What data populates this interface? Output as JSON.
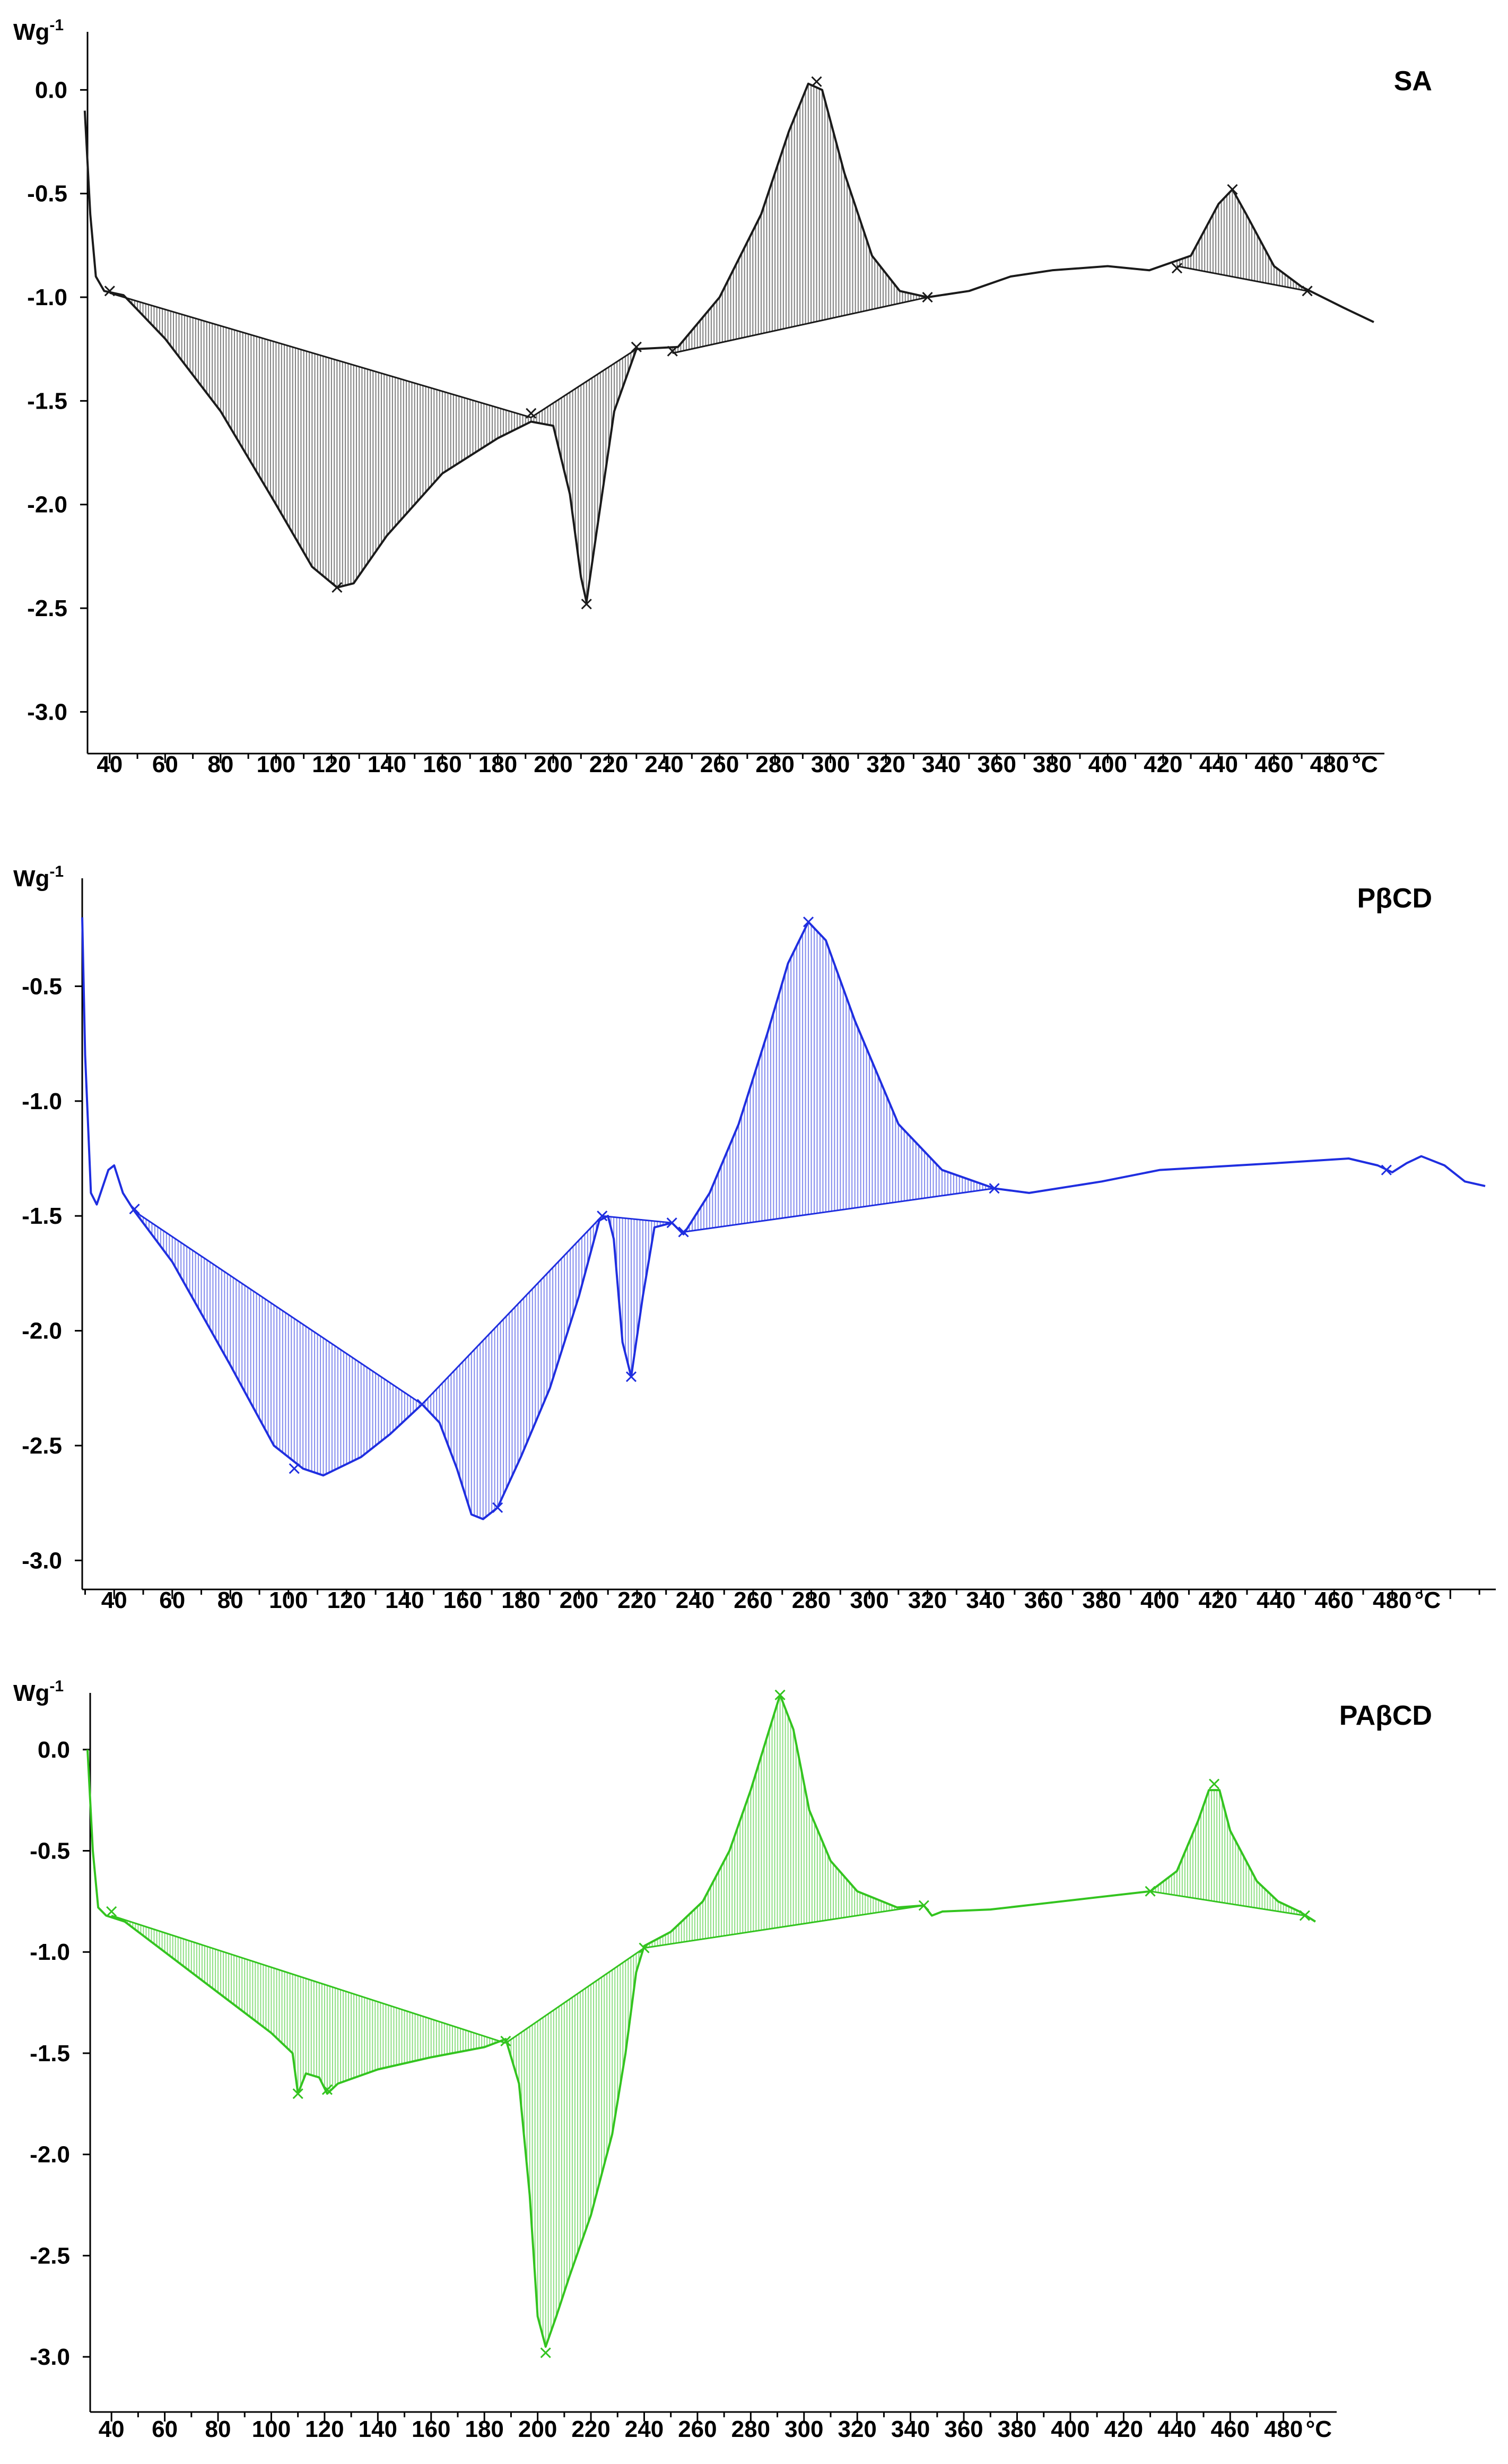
{
  "chart_data": [
    {
      "type": "line",
      "title": "SA",
      "ylabel": "Wg",
      "ylabel_sup": "-1",
      "xunit": "°C",
      "color": "#1a1a1a",
      "xlim": [
        32,
        496
      ],
      "ylim": [
        -3.15,
        0.28
      ],
      "xticks": [
        "40",
        "60",
        "80",
        "100",
        "120",
        "140",
        "160",
        "180",
        "200",
        "220",
        "240",
        "260",
        "280",
        "300",
        "320",
        "340",
        "360",
        "380",
        "400",
        "420",
        "440",
        "460",
        "480"
      ],
      "yticks": [
        "0.0",
        "-0.5",
        "-1.0",
        "-1.5",
        "-2.0",
        "-2.5",
        "-3.0"
      ],
      "curve": [
        [
          31,
          -0.1
        ],
        [
          33,
          -0.6
        ],
        [
          35,
          -0.9
        ],
        [
          38,
          -0.97
        ],
        [
          45,
          -0.99
        ],
        [
          60,
          -1.2
        ],
        [
          80,
          -1.55
        ],
        [
          100,
          -2.0
        ],
        [
          113,
          -2.3
        ],
        [
          122,
          -2.4
        ],
        [
          128,
          -2.38
        ],
        [
          140,
          -2.15
        ],
        [
          160,
          -1.85
        ],
        [
          180,
          -1.68
        ],
        [
          192,
          -1.6
        ],
        [
          200,
          -1.62
        ],
        [
          206,
          -1.95
        ],
        [
          210,
          -2.35
        ],
        [
          212,
          -2.47
        ],
        [
          216,
          -2.1
        ],
        [
          222,
          -1.55
        ],
        [
          230,
          -1.25
        ],
        [
          245,
          -1.24
        ],
        [
          260,
          -1.0
        ],
        [
          275,
          -0.6
        ],
        [
          285,
          -0.2
        ],
        [
          292,
          0.03
        ],
        [
          297,
          0.0
        ],
        [
          305,
          -0.4
        ],
        [
          315,
          -0.8
        ],
        [
          325,
          -0.97
        ],
        [
          335,
          -1.0
        ],
        [
          350,
          -0.97
        ],
        [
          365,
          -0.9
        ],
        [
          380,
          -0.87
        ],
        [
          400,
          -0.85
        ],
        [
          415,
          -0.87
        ],
        [
          430,
          -0.8
        ],
        [
          440,
          -0.55
        ],
        [
          445,
          -0.48
        ],
        [
          450,
          -0.6
        ],
        [
          460,
          -0.85
        ],
        [
          470,
          -0.95
        ],
        [
          485,
          -1.05
        ],
        [
          496,
          -1.12
        ]
      ],
      "shaded": [
        {
          "x1": 40,
          "x2": 192,
          "y1": -0.98,
          "y2": -1.58
        },
        {
          "x1": 192,
          "x2": 230,
          "y1": -1.58,
          "y2": -1.25
        },
        {
          "x1": 243,
          "x2": 335,
          "y1": -1.27,
          "y2": -1.0
        },
        {
          "x1": 425,
          "x2": 472,
          "y1": -0.85,
          "y2": -0.97
        }
      ],
      "markers": [
        [
          40,
          -0.97
        ],
        [
          122,
          -2.4
        ],
        [
          192,
          -1.56
        ],
        [
          212,
          -2.48
        ],
        [
          230,
          -1.24
        ],
        [
          243,
          -1.26
        ],
        [
          295,
          0.04
        ],
        [
          335,
          -1.0
        ],
        [
          425,
          -0.86
        ],
        [
          445,
          -0.48
        ],
        [
          472,
          -0.97
        ]
      ]
    },
    {
      "type": "line",
      "title": "PβCD",
      "ylabel": "Wg",
      "ylabel_sup": "-1",
      "xunit": "°C",
      "color": "#1f2ee0",
      "xlim": [
        29,
        512
      ],
      "ylim": [
        -3.08,
        -0.03
      ],
      "xticks": [
        "40",
        "60",
        "80",
        "100",
        "120",
        "140",
        "160",
        "180",
        "200",
        "220",
        "240",
        "260",
        "280",
        "300",
        "320",
        "340",
        "360",
        "380",
        "400",
        "420",
        "440",
        "460",
        "480"
      ],
      "yticks": [
        "-0.5",
        "-1.0",
        "-1.5",
        "-2.0",
        "-2.5",
        "-3.0"
      ],
      "curve": [
        [
          29,
          -0.2
        ],
        [
          30,
          -0.8
        ],
        [
          32,
          -1.4
        ],
        [
          34,
          -1.45
        ],
        [
          38,
          -1.3
        ],
        [
          40,
          -1.28
        ],
        [
          43,
          -1.4
        ],
        [
          47,
          -1.48
        ],
        [
          60,
          -1.7
        ],
        [
          80,
          -2.15
        ],
        [
          95,
          -2.5
        ],
        [
          105,
          -2.6
        ],
        [
          112,
          -2.63
        ],
        [
          125,
          -2.55
        ],
        [
          135,
          -2.45
        ],
        [
          146,
          -2.32
        ],
        [
          152,
          -2.4
        ],
        [
          158,
          -2.6
        ],
        [
          163,
          -2.8
        ],
        [
          167,
          -2.82
        ],
        [
          172,
          -2.77
        ],
        [
          180,
          -2.55
        ],
        [
          190,
          -2.25
        ],
        [
          200,
          -1.85
        ],
        [
          207,
          -1.52
        ],
        [
          210,
          -1.5
        ],
        [
          212,
          -1.6
        ],
        [
          215,
          -2.05
        ],
        [
          218,
          -2.2
        ],
        [
          222,
          -1.85
        ],
        [
          226,
          -1.55
        ],
        [
          232,
          -1.53
        ],
        [
          236,
          -1.58
        ],
        [
          245,
          -1.4
        ],
        [
          255,
          -1.1
        ],
        [
          265,
          -0.7
        ],
        [
          272,
          -0.4
        ],
        [
          279,
          -0.22
        ],
        [
          285,
          -0.3
        ],
        [
          295,
          -0.65
        ],
        [
          310,
          -1.1
        ],
        [
          325,
          -1.3
        ],
        [
          343,
          -1.38
        ],
        [
          355,
          -1.4
        ],
        [
          380,
          -1.35
        ],
        [
          400,
          -1.3
        ],
        [
          440,
          -1.27
        ],
        [
          465,
          -1.25
        ],
        [
          475,
          -1.28
        ],
        [
          480,
          -1.31
        ],
        [
          485,
          -1.27
        ],
        [
          490,
          -1.24
        ],
        [
          498,
          -1.28
        ],
        [
          505,
          -1.35
        ],
        [
          512,
          -1.37
        ]
      ],
      "shaded": [
        {
          "x1": 47,
          "x2": 146,
          "y1": -1.48,
          "y2": -2.32
        },
        {
          "x1": 146,
          "x2": 208,
          "y1": -2.32,
          "y2": -1.5
        },
        {
          "x1": 208,
          "x2": 232,
          "y1": -1.5,
          "y2": -1.53
        },
        {
          "x1": 236,
          "x2": 343,
          "y1": -1.57,
          "y2": -1.38
        }
      ],
      "markers": [
        [
          47,
          -1.47
        ],
        [
          102,
          -2.6
        ],
        [
          146,
          -2.32
        ],
        [
          172,
          -2.77
        ],
        [
          208,
          -1.5
        ],
        [
          218,
          -2.2
        ],
        [
          232,
          -1.53
        ],
        [
          236,
          -1.57
        ],
        [
          279,
          -0.22
        ],
        [
          343,
          -1.38
        ],
        [
          478,
          -1.3
        ]
      ]
    },
    {
      "type": "line",
      "title": "PAβCD",
      "ylabel": "Wg",
      "ylabel_sup": "-1",
      "xunit": "°C",
      "color": "#33c41f",
      "xlim": [
        32,
        496
      ],
      "ylim": [
        -3.22,
        0.28
      ],
      "xticks": [
        "40",
        "60",
        "80",
        "100",
        "120",
        "140",
        "160",
        "180",
        "200",
        "220",
        "240",
        "260",
        "280",
        "300",
        "320",
        "340",
        "360",
        "380",
        "400",
        "420",
        "440",
        "460",
        "480"
      ],
      "yticks": [
        "0.0",
        "-0.5",
        "-1.0",
        "-1.5",
        "-2.0",
        "-2.5",
        "-3.0"
      ],
      "curve": [
        [
          31,
          0.0
        ],
        [
          33,
          -0.5
        ],
        [
          35,
          -0.78
        ],
        [
          38,
          -0.82
        ],
        [
          45,
          -0.85
        ],
        [
          60,
          -1.0
        ],
        [
          80,
          -1.2
        ],
        [
          100,
          -1.4
        ],
        [
          108,
          -1.5
        ],
        [
          110,
          -1.7
        ],
        [
          113,
          -1.6
        ],
        [
          118,
          -1.62
        ],
        [
          121,
          -1.7
        ],
        [
          125,
          -1.65
        ],
        [
          140,
          -1.58
        ],
        [
          160,
          -1.52
        ],
        [
          180,
          -1.47
        ],
        [
          188,
          -1.43
        ],
        [
          193,
          -1.65
        ],
        [
          197,
          -2.2
        ],
        [
          200,
          -2.8
        ],
        [
          203,
          -2.95
        ],
        [
          207,
          -2.8
        ],
        [
          212,
          -2.6
        ],
        [
          220,
          -2.3
        ],
        [
          228,
          -1.9
        ],
        [
          233,
          -1.5
        ],
        [
          237,
          -1.1
        ],
        [
          240,
          -0.97
        ],
        [
          250,
          -0.9
        ],
        [
          262,
          -0.75
        ],
        [
          272,
          -0.5
        ],
        [
          280,
          -0.2
        ],
        [
          287,
          0.1
        ],
        [
          291,
          0.27
        ],
        [
          296,
          0.1
        ],
        [
          302,
          -0.3
        ],
        [
          310,
          -0.55
        ],
        [
          320,
          -0.7
        ],
        [
          335,
          -0.78
        ],
        [
          345,
          -0.77
        ],
        [
          348,
          -0.82
        ],
        [
          352,
          -0.8
        ],
        [
          370,
          -0.79
        ],
        [
          390,
          -0.76
        ],
        [
          410,
          -0.73
        ],
        [
          430,
          -0.7
        ],
        [
          440,
          -0.6
        ],
        [
          448,
          -0.35
        ],
        [
          452,
          -0.2
        ],
        [
          456,
          -0.2
        ],
        [
          460,
          -0.4
        ],
        [
          470,
          -0.65
        ],
        [
          478,
          -0.75
        ],
        [
          486,
          -0.8
        ],
        [
          492,
          -0.85
        ]
      ],
      "shaded": [
        {
          "x1": 40,
          "x2": 188,
          "y1": -0.82,
          "y2": -1.45
        },
        {
          "x1": 188,
          "x2": 240,
          "y1": -1.45,
          "y2": -0.98
        },
        {
          "x1": 240,
          "x2": 345,
          "y1": -0.98,
          "y2": -0.77
        },
        {
          "x1": 430,
          "x2": 488,
          "y1": -0.7,
          "y2": -0.82
        }
      ],
      "markers": [
        [
          40,
          -0.8
        ],
        [
          110,
          -1.7
        ],
        [
          121,
          -1.68
        ],
        [
          188,
          -1.44
        ],
        [
          203,
          -2.98
        ],
        [
          240,
          -0.98
        ],
        [
          291,
          0.27
        ],
        [
          345,
          -0.77
        ],
        [
          430,
          -0.7
        ],
        [
          454,
          -0.17
        ],
        [
          488,
          -0.82
        ]
      ]
    }
  ]
}
